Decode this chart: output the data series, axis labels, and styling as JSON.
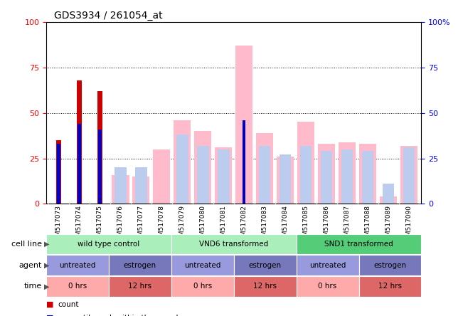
{
  "title": "GDS3934 / 261054_at",
  "samples": [
    "GSM517073",
    "GSM517074",
    "GSM517075",
    "GSM517076",
    "GSM517077",
    "GSM517078",
    "GSM517079",
    "GSM517080",
    "GSM517081",
    "GSM517082",
    "GSM517083",
    "GSM517084",
    "GSM517085",
    "GSM517086",
    "GSM517087",
    "GSM517088",
    "GSM517089",
    "GSM517090"
  ],
  "red_bars": [
    35,
    68,
    62,
    0,
    0,
    0,
    0,
    0,
    0,
    0,
    0,
    0,
    0,
    0,
    0,
    0,
    0,
    0
  ],
  "blue_bars": [
    33,
    44,
    41,
    0,
    0,
    0,
    0,
    0,
    0,
    46,
    0,
    0,
    0,
    0,
    0,
    0,
    0,
    0
  ],
  "pink_bars": [
    0,
    0,
    0,
    16,
    15,
    30,
    46,
    40,
    31,
    87,
    39,
    26,
    45,
    33,
    34,
    33,
    4,
    32
  ],
  "lightblue_bars": [
    0,
    0,
    0,
    20,
    20,
    0,
    38,
    32,
    30,
    0,
    32,
    27,
    32,
    29,
    30,
    29,
    11,
    31
  ],
  "ylim": [
    0,
    100
  ],
  "yticks": [
    0,
    25,
    50,
    75,
    100
  ],
  "cell_line_groups": [
    {
      "label": "wild type control",
      "start": 0,
      "end": 6,
      "color": "#AAEEBB"
    },
    {
      "label": "VND6 transformed",
      "start": 6,
      "end": 12,
      "color": "#AAEEBB"
    },
    {
      "label": "SND1 transformed",
      "start": 12,
      "end": 18,
      "color": "#55CC77"
    }
  ],
  "agent_groups": [
    {
      "label": "untreated",
      "start": 0,
      "end": 3,
      "color": "#9999DD"
    },
    {
      "label": "estrogen",
      "start": 3,
      "end": 6,
      "color": "#7777BB"
    },
    {
      "label": "untreated",
      "start": 6,
      "end": 9,
      "color": "#9999DD"
    },
    {
      "label": "estrogen",
      "start": 9,
      "end": 12,
      "color": "#7777BB"
    },
    {
      "label": "untreated",
      "start": 12,
      "end": 15,
      "color": "#9999DD"
    },
    {
      "label": "estrogen",
      "start": 15,
      "end": 18,
      "color": "#7777BB"
    }
  ],
  "time_groups": [
    {
      "label": "0 hrs",
      "start": 0,
      "end": 3,
      "color": "#FFAAAA"
    },
    {
      "label": "12 hrs",
      "start": 3,
      "end": 6,
      "color": "#DD6666"
    },
    {
      "label": "0 hrs",
      "start": 6,
      "end": 9,
      "color": "#FFAAAA"
    },
    {
      "label": "12 hrs",
      "start": 9,
      "end": 12,
      "color": "#DD6666"
    },
    {
      "label": "0 hrs",
      "start": 12,
      "end": 15,
      "color": "#FFAAAA"
    },
    {
      "label": "12 hrs",
      "start": 15,
      "end": 18,
      "color": "#DD6666"
    }
  ],
  "red_color": "#CC0000",
  "blue_color": "#0000CC",
  "pink_color": "#FFBBCC",
  "lightblue_color": "#BBCCEE",
  "xtick_bg": "#CCCCCC",
  "row_label_color": "#444444",
  "bar_width": 0.38
}
